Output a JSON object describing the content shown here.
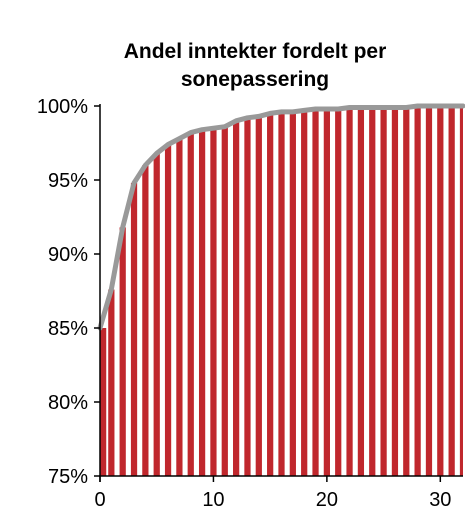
{
  "chart_data": {
    "type": "bar",
    "title_lines": [
      "Andel inntekter fordelt per",
      "sonepassering"
    ],
    "xlabel": "",
    "ylabel": "",
    "xlim": [
      0,
      32
    ],
    "ylim": [
      0.75,
      1.0
    ],
    "x_ticks": [
      0,
      10,
      20,
      30
    ],
    "y_ticks": [
      {
        "value": 1.0,
        "label": "100%"
      },
      {
        "value": 0.95,
        "label": "95%"
      },
      {
        "value": 0.9,
        "label": "90%"
      },
      {
        "value": 0.85,
        "label": "85%"
      },
      {
        "value": 0.8,
        "label": "80%"
      },
      {
        "value": 0.75,
        "label": "75%"
      }
    ],
    "x": [
      0,
      1,
      2,
      3,
      4,
      5,
      6,
      7,
      8,
      9,
      10,
      11,
      12,
      13,
      14,
      15,
      16,
      17,
      18,
      19,
      20,
      21,
      22,
      23,
      24,
      25,
      26,
      27,
      28,
      29,
      30,
      31,
      32
    ],
    "values": [
      0.85,
      0.876,
      0.918,
      0.948,
      0.96,
      0.968,
      0.974,
      0.978,
      0.982,
      0.984,
      0.985,
      0.986,
      0.99,
      0.992,
      0.993,
      0.995,
      0.996,
      0.996,
      0.997,
      0.998,
      0.998,
      0.998,
      0.999,
      0.999,
      0.999,
      0.999,
      0.999,
      0.999,
      1.0,
      1.0,
      1.0,
      1.0,
      1.0
    ],
    "bar_color": "#c0272d",
    "line_color": "#999999",
    "grid": false
  }
}
